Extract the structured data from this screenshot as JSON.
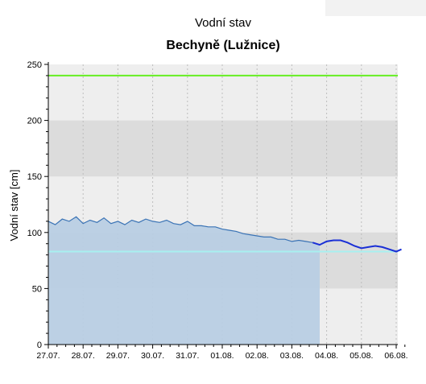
{
  "chart_data": {
    "type": "area",
    "title": "Vodní stav",
    "subtitle": "Bechyně (Lužnice)",
    "xlabel": "",
    "ylabel": "Vodní stav [cm]",
    "xlim": [
      "27.07.",
      "06.08."
    ],
    "ylim": [
      0,
      250
    ],
    "yticks": [
      0,
      50,
      100,
      150,
      200,
      250
    ],
    "xtick_labels": [
      "27.07.",
      "28.07.",
      "29.07.",
      "30.07.",
      "31.07.",
      "01.08.",
      "02.08.",
      "03.08.",
      "04.08.",
      "05.08.",
      "06.08."
    ],
    "grid": true,
    "bands": [
      {
        "from": 50,
        "to": 100,
        "color": "#dcdcdc"
      },
      {
        "from": 150,
        "to": 200,
        "color": "#dcdcdc"
      }
    ],
    "thresholds": [
      {
        "value": 240,
        "color": "#66ee22"
      },
      {
        "value": 83,
        "color": "#a8f0f0"
      }
    ],
    "series": [
      {
        "type": "area",
        "color": "#3a73b5",
        "fill": "#b8cde3",
        "x_days": [
          0,
          0.2,
          0.4,
          0.6,
          0.8,
          1.0,
          1.2,
          1.4,
          1.6,
          1.8,
          2.0,
          2.2,
          2.4,
          2.6,
          2.8,
          3.0,
          3.2,
          3.4,
          3.6,
          3.8,
          4.0,
          4.2,
          4.4,
          4.6,
          4.8,
          5.0,
          5.2,
          5.4,
          5.6,
          5.8,
          6.0,
          6.2,
          6.4,
          6.6,
          6.8,
          7.0,
          7.2,
          7.4,
          7.6,
          7.8
        ],
        "values": [
          110,
          107,
          112,
          110,
          114,
          108,
          111,
          109,
          113,
          108,
          110,
          107,
          111,
          109,
          112,
          110,
          109,
          111,
          108,
          107,
          110,
          106,
          106,
          105,
          105,
          103,
          102,
          101,
          99,
          98,
          97,
          96,
          96,
          94,
          94,
          92,
          93,
          92,
          91,
          89
        ]
      },
      {
        "type": "line",
        "color": "#1a2fd6",
        "x_days": [
          7.6,
          7.8,
          8.0,
          8.2,
          8.4,
          8.6,
          8.8,
          9.0,
          9.2,
          9.4,
          9.6,
          9.8,
          10.0,
          10.15
        ],
        "values": [
          91,
          89,
          92,
          93,
          93,
          91,
          88,
          86,
          87,
          88,
          87,
          85,
          83,
          85
        ]
      }
    ]
  }
}
